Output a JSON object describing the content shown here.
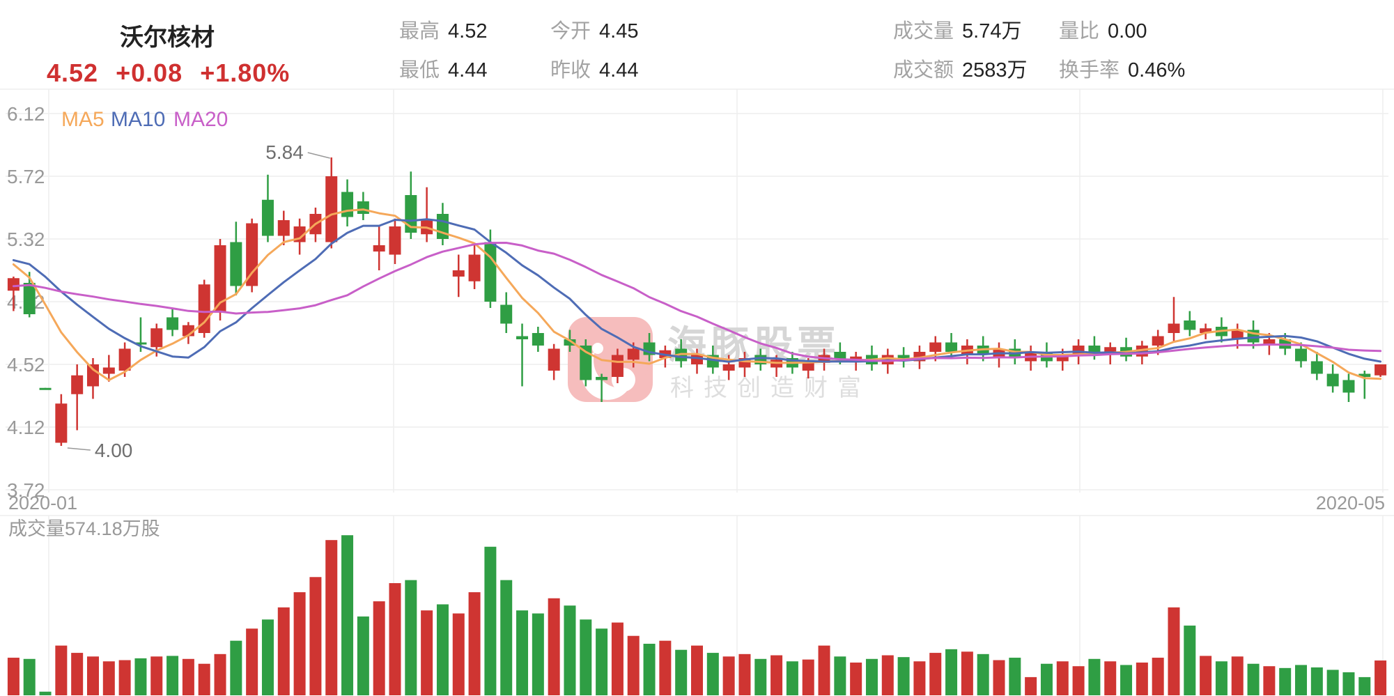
{
  "header": {
    "stock_name": "沃尔核材",
    "price": "4.52",
    "change": "+0.08",
    "change_pct": "+1.80%",
    "stats": [
      {
        "label": "最高",
        "value": "4.52"
      },
      {
        "label": "最低",
        "value": "4.44"
      },
      {
        "label": "今开",
        "value": "4.45"
      },
      {
        "label": "昨收",
        "value": "4.44"
      },
      {
        "label": "成交量",
        "value": "5.74万"
      },
      {
        "label": "成交额",
        "value": "2583万"
      },
      {
        "label": "量比",
        "value": "0.00"
      },
      {
        "label": "换手率",
        "value": "0.46%"
      }
    ]
  },
  "watermark": {
    "title": "海豚股票",
    "subtitle": "科技创造财富"
  },
  "chart_data": {
    "type": "candlestick+volume",
    "y_axis": {
      "max": 6.12,
      "min": 3.72,
      "step": 0.4,
      "labels": [
        "6.12",
        "5.72",
        "5.32",
        "4.92",
        "4.52",
        "4.12",
        "3.72"
      ]
    },
    "x_axis": {
      "labels": [
        "2020-01",
        "2020-05"
      ]
    },
    "legend": [
      {
        "label": "MA5",
        "color": "#f5a85a"
      },
      {
        "label": "MA10",
        "color": "#4e6cb5"
      },
      {
        "label": "MA20",
        "color": "#c85fc8"
      }
    ],
    "colors": {
      "up": "#cf3532",
      "down": "#2f9e44",
      "grid": "#eeeeee",
      "axis_text": "#999999",
      "annotation_text": "#6e6e6e",
      "annotation_line": "#999999"
    },
    "annotations": [
      {
        "label": "5.84",
        "candle_index": 20,
        "anchor": "high"
      },
      {
        "label": "4.00",
        "candle_index": 3,
        "anchor": "low"
      }
    ],
    "volume_label": "成交量574.18万股",
    "volume_axis_max": 2700,
    "candle_format": "[open, high, low, close, volume_wan_shares]",
    "ma_seed_closes": [
      4.7,
      4.72,
      4.75,
      4.78,
      4.82,
      4.86,
      4.9,
      4.95,
      5.0,
      5.05,
      5.1,
      5.16,
      5.22,
      5.28,
      5.3,
      5.26,
      5.22,
      5.16,
      5.08
    ],
    "candles": [
      [
        4.99,
        5.08,
        4.86,
        5.07,
        620
      ],
      [
        5.04,
        5.11,
        4.82,
        4.84,
        600
      ],
      [
        4.37,
        4.37,
        4.36,
        4.36,
        60
      ],
      [
        4.02,
        4.33,
        4.0,
        4.27,
        820
      ],
      [
        4.33,
        4.52,
        4.1,
        4.45,
        700
      ],
      [
        4.38,
        4.56,
        4.3,
        4.52,
        640
      ],
      [
        4.46,
        4.58,
        4.41,
        4.5,
        560
      ],
      [
        4.48,
        4.66,
        4.44,
        4.62,
        580
      ],
      [
        4.66,
        4.82,
        4.6,
        4.65,
        610
      ],
      [
        4.63,
        4.78,
        4.57,
        4.75,
        640
      ],
      [
        4.82,
        4.88,
        4.7,
        4.74,
        650
      ],
      [
        4.7,
        4.79,
        4.65,
        4.77,
        600
      ],
      [
        4.72,
        5.06,
        4.69,
        5.03,
        520
      ],
      [
        4.85,
        5.32,
        4.8,
        5.28,
        680
      ],
      [
        5.3,
        5.43,
        4.96,
        5.02,
        900
      ],
      [
        5.02,
        5.45,
        4.98,
        5.42,
        1100
      ],
      [
        5.57,
        5.73,
        5.3,
        5.34,
        1250
      ],
      [
        5.34,
        5.5,
        5.28,
        5.44,
        1450
      ],
      [
        5.3,
        5.45,
        5.22,
        5.4,
        1700
      ],
      [
        5.35,
        5.52,
        5.3,
        5.48,
        1950
      ],
      [
        5.3,
        5.84,
        5.26,
        5.72,
        2560
      ],
      [
        5.62,
        5.7,
        5.4,
        5.46,
        2640
      ],
      [
        5.56,
        5.62,
        5.44,
        5.48,
        1300
      ],
      [
        5.24,
        5.4,
        5.12,
        5.28,
        1550
      ],
      [
        5.22,
        5.45,
        5.16,
        5.4,
        1850
      ],
      [
        5.6,
        5.75,
        5.32,
        5.36,
        1900
      ],
      [
        5.35,
        5.65,
        5.3,
        5.44,
        1400
      ],
      [
        5.48,
        5.55,
        5.28,
        5.32,
        1500
      ],
      [
        5.08,
        5.22,
        4.95,
        5.12,
        1350
      ],
      [
        5.05,
        5.28,
        5.0,
        5.22,
        1700
      ],
      [
        5.3,
        5.38,
        4.88,
        4.92,
        2450
      ],
      [
        4.9,
        4.98,
        4.72,
        4.78,
        1900
      ],
      [
        4.7,
        4.78,
        4.38,
        4.68,
        1400
      ],
      [
        4.72,
        4.76,
        4.6,
        4.64,
        1350
      ],
      [
        4.48,
        4.65,
        4.42,
        4.62,
        1600
      ],
      [
        4.68,
        4.74,
        4.6,
        4.64,
        1480
      ],
      [
        4.64,
        4.68,
        4.38,
        4.42,
        1250
      ],
      [
        4.44,
        4.46,
        4.28,
        4.42,
        1100
      ],
      [
        4.44,
        4.62,
        4.4,
        4.58,
        1200
      ],
      [
        4.55,
        4.66,
        4.5,
        4.62,
        980
      ],
      [
        4.66,
        4.72,
        4.54,
        4.58,
        850
      ],
      [
        4.56,
        4.64,
        4.5,
        4.61,
        900
      ],
      [
        4.62,
        4.68,
        4.5,
        4.54,
        750
      ],
      [
        4.52,
        4.62,
        4.46,
        4.58,
        820
      ],
      [
        4.58,
        4.64,
        4.46,
        4.5,
        700
      ],
      [
        4.48,
        4.58,
        4.42,
        4.52,
        640
      ],
      [
        4.5,
        4.6,
        4.44,
        4.56,
        680
      ],
      [
        4.58,
        4.62,
        4.48,
        4.52,
        600
      ],
      [
        4.5,
        4.58,
        4.44,
        4.55,
        660
      ],
      [
        4.56,
        4.6,
        4.46,
        4.5,
        560
      ],
      [
        4.48,
        4.56,
        4.43,
        4.53,
        590
      ],
      [
        4.53,
        4.62,
        4.48,
        4.58,
        820
      ],
      [
        4.6,
        4.66,
        4.52,
        4.55,
        640
      ],
      [
        4.54,
        4.6,
        4.48,
        4.57,
        540
      ],
      [
        4.58,
        4.64,
        4.48,
        4.52,
        600
      ],
      [
        4.52,
        4.62,
        4.46,
        4.58,
        660
      ],
      [
        4.58,
        4.63,
        4.5,
        4.54,
        630
      ],
      [
        4.54,
        4.64,
        4.49,
        4.6,
        560
      ],
      [
        4.6,
        4.7,
        4.54,
        4.66,
        700
      ],
      [
        4.66,
        4.72,
        4.56,
        4.6,
        760
      ],
      [
        4.58,
        4.68,
        4.52,
        4.64,
        720
      ],
      [
        4.64,
        4.7,
        4.54,
        4.58,
        680
      ],
      [
        4.56,
        4.66,
        4.5,
        4.62,
        580
      ],
      [
        4.62,
        4.68,
        4.52,
        4.56,
        620
      ],
      [
        4.54,
        4.64,
        4.48,
        4.6,
        300
      ],
      [
        4.6,
        4.66,
        4.5,
        4.54,
        520
      ],
      [
        4.54,
        4.62,
        4.48,
        4.58,
        560
      ],
      [
        4.58,
        4.68,
        4.52,
        4.64,
        480
      ],
      [
        4.64,
        4.7,
        4.55,
        4.58,
        600
      ],
      [
        4.58,
        4.66,
        4.52,
        4.63,
        560
      ],
      [
        4.63,
        4.69,
        4.54,
        4.57,
        500
      ],
      [
        4.57,
        4.67,
        4.52,
        4.64,
        540
      ],
      [
        4.64,
        4.74,
        4.58,
        4.7,
        620
      ],
      [
        4.72,
        4.95,
        4.66,
        4.78,
        1450
      ],
      [
        4.8,
        4.86,
        4.7,
        4.74,
        1150
      ],
      [
        4.72,
        4.78,
        4.68,
        4.75,
        650
      ],
      [
        4.76,
        4.82,
        4.66,
        4.7,
        560
      ],
      [
        4.68,
        4.78,
        4.62,
        4.74,
        640
      ],
      [
        4.74,
        4.8,
        4.62,
        4.66,
        520
      ],
      [
        4.64,
        4.72,
        4.58,
        4.68,
        480
      ],
      [
        4.68,
        4.72,
        4.58,
        4.62,
        450
      ],
      [
        4.62,
        4.66,
        4.5,
        4.54,
        500
      ],
      [
        4.54,
        4.6,
        4.42,
        4.46,
        460
      ],
      [
        4.46,
        4.52,
        4.34,
        4.38,
        420
      ],
      [
        4.42,
        4.46,
        4.28,
        4.34,
        380
      ],
      [
        4.46,
        4.48,
        4.3,
        4.44,
        300
      ],
      [
        4.45,
        4.52,
        4.44,
        4.52,
        574
      ]
    ]
  }
}
